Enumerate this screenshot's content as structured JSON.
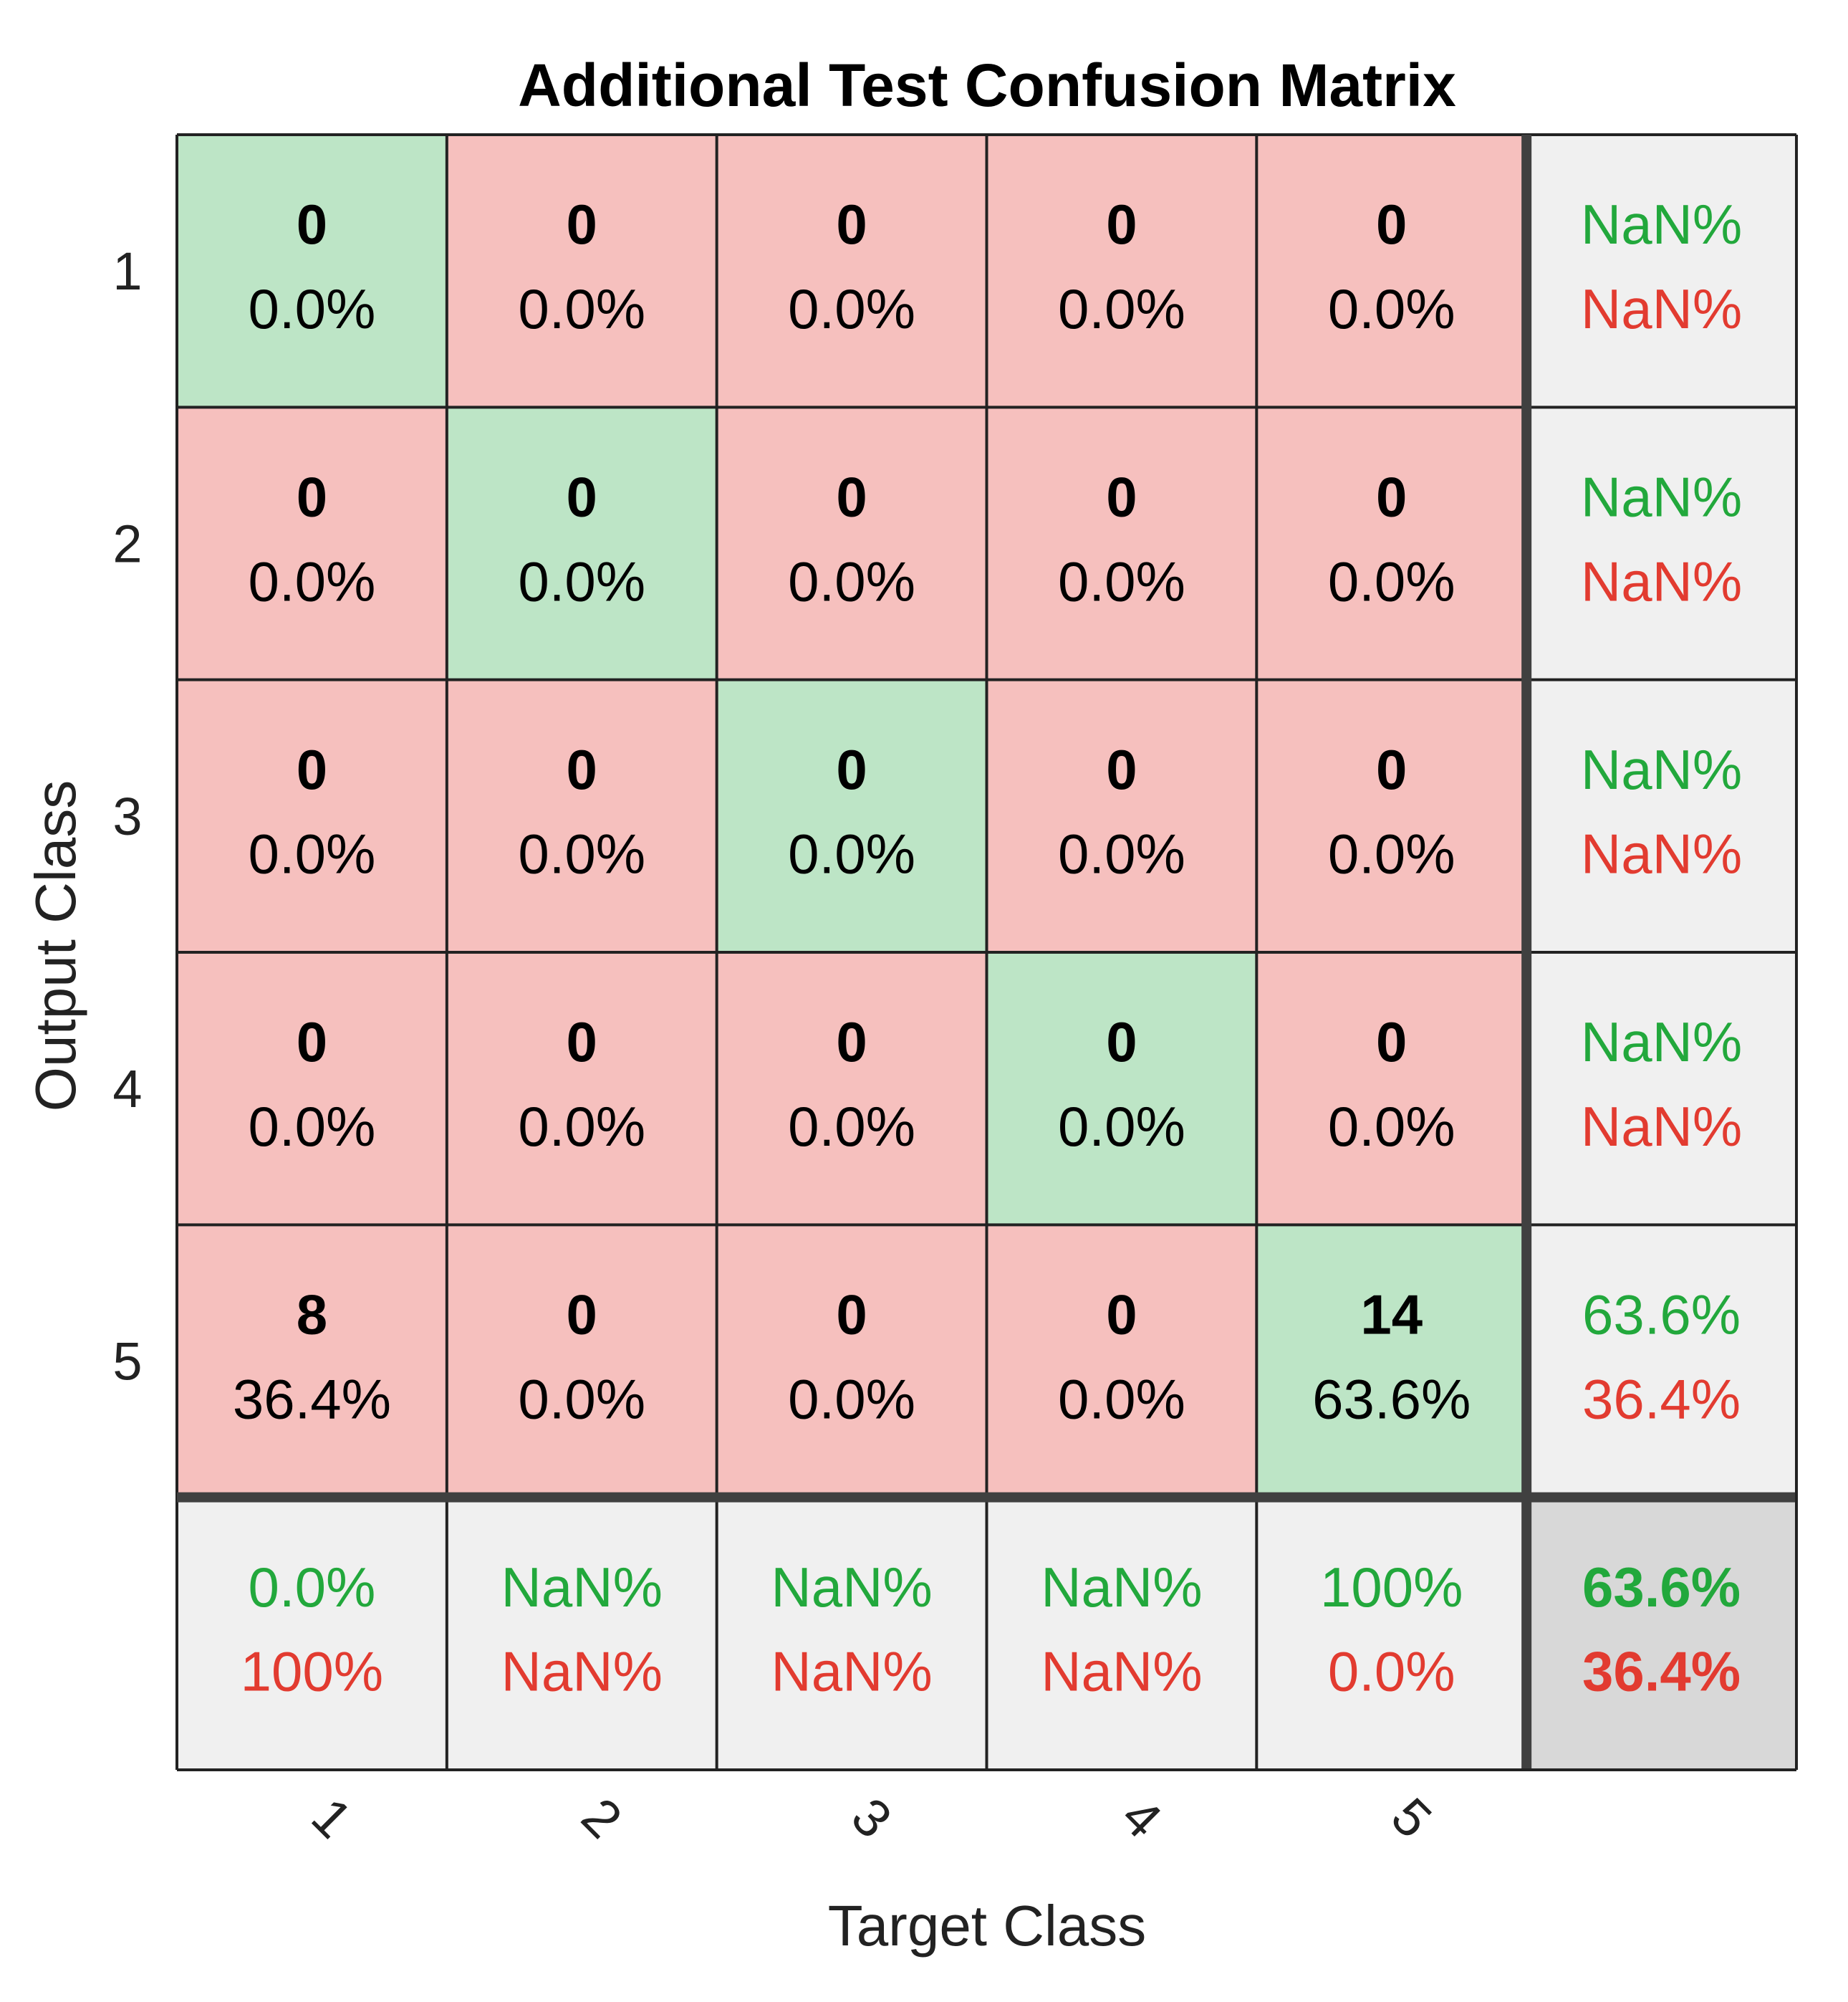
{
  "chart_data": {
    "type": "heatmap",
    "title": "Additional Test Confusion Matrix",
    "xlabel": "Target Class",
    "ylabel": "Output Class",
    "x_tick_labels": [
      "1",
      "2",
      "3",
      "4",
      "5"
    ],
    "y_tick_labels": [
      "1",
      "2",
      "3",
      "4",
      "5"
    ],
    "counts": [
      [
        0,
        0,
        0,
        0,
        0
      ],
      [
        0,
        0,
        0,
        0,
        0
      ],
      [
        0,
        0,
        0,
        0,
        0
      ],
      [
        0,
        0,
        0,
        0,
        0
      ],
      [
        8,
        0,
        0,
        0,
        14
      ]
    ],
    "percentages": [
      [
        "0.0%",
        "0.0%",
        "0.0%",
        "0.0%",
        "0.0%"
      ],
      [
        "0.0%",
        "0.0%",
        "0.0%",
        "0.0%",
        "0.0%"
      ],
      [
        "0.0%",
        "0.0%",
        "0.0%",
        "0.0%",
        "0.0%"
      ],
      [
        "0.0%",
        "0.0%",
        "0.0%",
        "0.0%",
        "0.0%"
      ],
      [
        "36.4%",
        "0.0%",
        "0.0%",
        "0.0%",
        "63.6%"
      ]
    ],
    "row_summary": [
      {
        "correct": "NaN%",
        "incorrect": "NaN%"
      },
      {
        "correct": "NaN%",
        "incorrect": "NaN%"
      },
      {
        "correct": "NaN%",
        "incorrect": "NaN%"
      },
      {
        "correct": "NaN%",
        "incorrect": "NaN%"
      },
      {
        "correct": "63.6%",
        "incorrect": "36.4%"
      }
    ],
    "column_summary": [
      {
        "correct": "0.0%",
        "incorrect": "100%"
      },
      {
        "correct": "NaN%",
        "incorrect": "NaN%"
      },
      {
        "correct": "NaN%",
        "incorrect": "NaN%"
      },
      {
        "correct": "NaN%",
        "incorrect": "NaN%"
      },
      {
        "correct": "100%",
        "incorrect": "0.0%"
      }
    ],
    "overall": {
      "correct": "63.6%",
      "incorrect": "36.4%"
    },
    "colors": {
      "diagonal": "#bde5c6",
      "off_diagonal": "#f6c0be",
      "summary": "#f0f0f0",
      "overall": "#d8d8d8",
      "correct_text": "#22a83c",
      "incorrect_text": "#e23b30"
    }
  }
}
